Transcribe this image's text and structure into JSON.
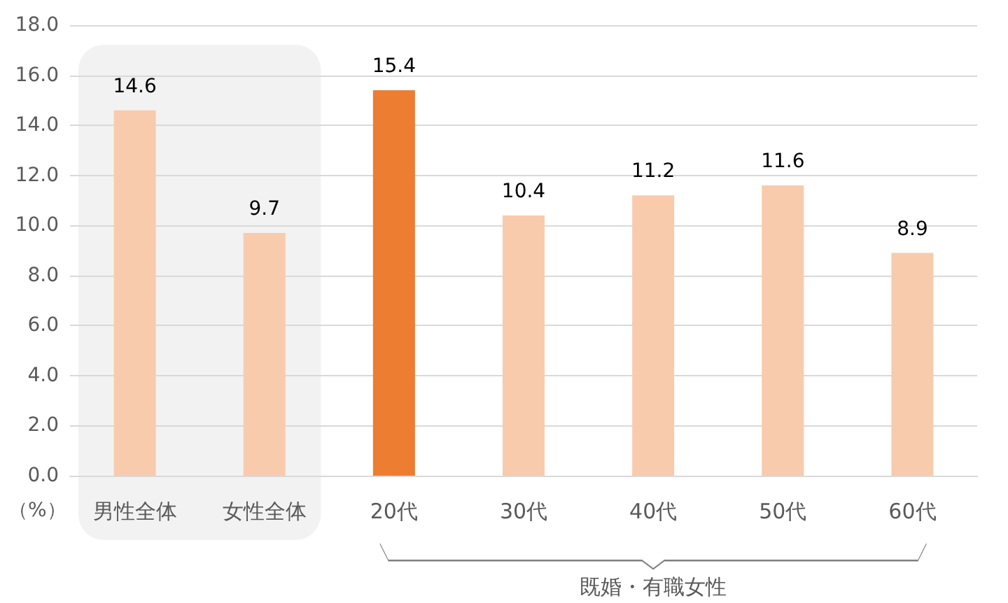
{
  "chart_data": {
    "type": "bar",
    "ylabel": "（%）",
    "categories": [
      "男性全体",
      "女性全体",
      "20代",
      "30代",
      "40代",
      "50代",
      "60代"
    ],
    "values": [
      14.6,
      9.7,
      15.4,
      10.4,
      11.2,
      11.6,
      8.9
    ],
    "colors": [
      "#f8cbad",
      "#f8cbad",
      "#ed7d31",
      "#f8cbad",
      "#f8cbad",
      "#f8cbad",
      "#f8cbad"
    ],
    "ylim": [
      0,
      18
    ],
    "yticks": [
      {
        "value": 0,
        "label": "0.0"
      },
      {
        "value": 2,
        "label": "2.0"
      },
      {
        "value": 4,
        "label": "4.0"
      },
      {
        "value": 6,
        "label": "6.0"
      },
      {
        "value": 8,
        "label": "8.0"
      },
      {
        "value": 10,
        "label": "10.0"
      },
      {
        "value": 12,
        "label": "12.0"
      },
      {
        "value": 14,
        "label": "14.0"
      },
      {
        "value": 16,
        "label": "16.0"
      },
      {
        "value": 18,
        "label": "18.0"
      }
    ],
    "grid": "y",
    "data_labels": true,
    "bands": [
      {
        "axis": "x",
        "from": "男性全体",
        "to": "女性全体",
        "color": "#f2f2f2"
      }
    ],
    "annotations": [
      "既婚・有職女性"
    ]
  }
}
